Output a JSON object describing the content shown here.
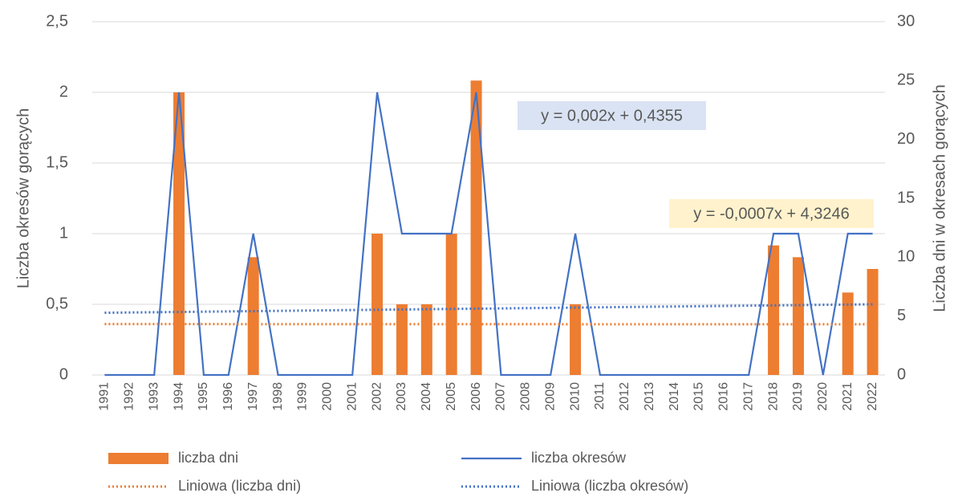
{
  "chart_data": {
    "type": "combo",
    "y_label": "Liczba okresów gorących",
    "y2_label": "Liczba dni w okresach gorących",
    "categories": [
      "1991",
      "1992",
      "1993",
      "1994",
      "1995",
      "1996",
      "1997",
      "1998",
      "1999",
      "2000",
      "2001",
      "2002",
      "2003",
      "2004",
      "2005",
      "2006",
      "2007",
      "2008",
      "2009",
      "2010",
      "2011",
      "2012",
      "2013",
      "2014",
      "2015",
      "2016",
      "2017",
      "2018",
      "2019",
      "2020",
      "2021",
      "2022"
    ],
    "ylim": [
      0,
      2.5
    ],
    "yticks": [
      0,
      {
        "value": 0.5,
        "label": "0,5"
      },
      1,
      {
        "value": 1.5,
        "label": "1,5"
      },
      2,
      {
        "value": 2.5,
        "label": "2,5"
      }
    ],
    "y2lim": [
      0,
      30
    ],
    "y2ticks": [
      0,
      5,
      10,
      15,
      20,
      25,
      30
    ],
    "grid": true,
    "legend": "bottom",
    "series": [
      {
        "name": "liczba dni",
        "type": "bar",
        "axis": "y2",
        "color": "#ED7D31",
        "values": [
          0,
          0,
          0,
          24,
          0,
          0,
          10,
          0,
          0,
          0,
          0,
          12,
          6,
          6,
          12,
          25,
          0,
          0,
          0,
          6,
          0,
          0,
          0,
          0,
          0,
          0,
          0,
          11,
          10,
          0,
          7,
          9
        ]
      },
      {
        "name": "liczba okresów",
        "type": "line",
        "axis": "y",
        "color": "#4472C4",
        "values": [
          0,
          0,
          0,
          2,
          0,
          0,
          1,
          0,
          0,
          0,
          0,
          2,
          1,
          1,
          1,
          2,
          0,
          0,
          0,
          1,
          0,
          0,
          0,
          0,
          0,
          0,
          0,
          1,
          1,
          0,
          1,
          1
        ]
      },
      {
        "name": "Liniowa (liczba dni)",
        "type": "trend",
        "axis": "y2",
        "color": "#ED7D31",
        "x": [
          "1991",
          "2022"
        ],
        "values": [
          4.32,
          4.3
        ]
      },
      {
        "name": "Liniowa (liczba okresów)",
        "type": "trend",
        "axis": "y",
        "color": "#4472C4",
        "x": [
          "1991",
          "2022"
        ],
        "values": [
          0.44,
          0.5
        ]
      }
    ],
    "annotations": [
      {
        "text": "y = 0,002x + 0,4355",
        "background": "#DAE3F3"
      },
      {
        "text": "y = -0,0007x + 4,3246",
        "background": "#FFF2CC"
      }
    ]
  }
}
